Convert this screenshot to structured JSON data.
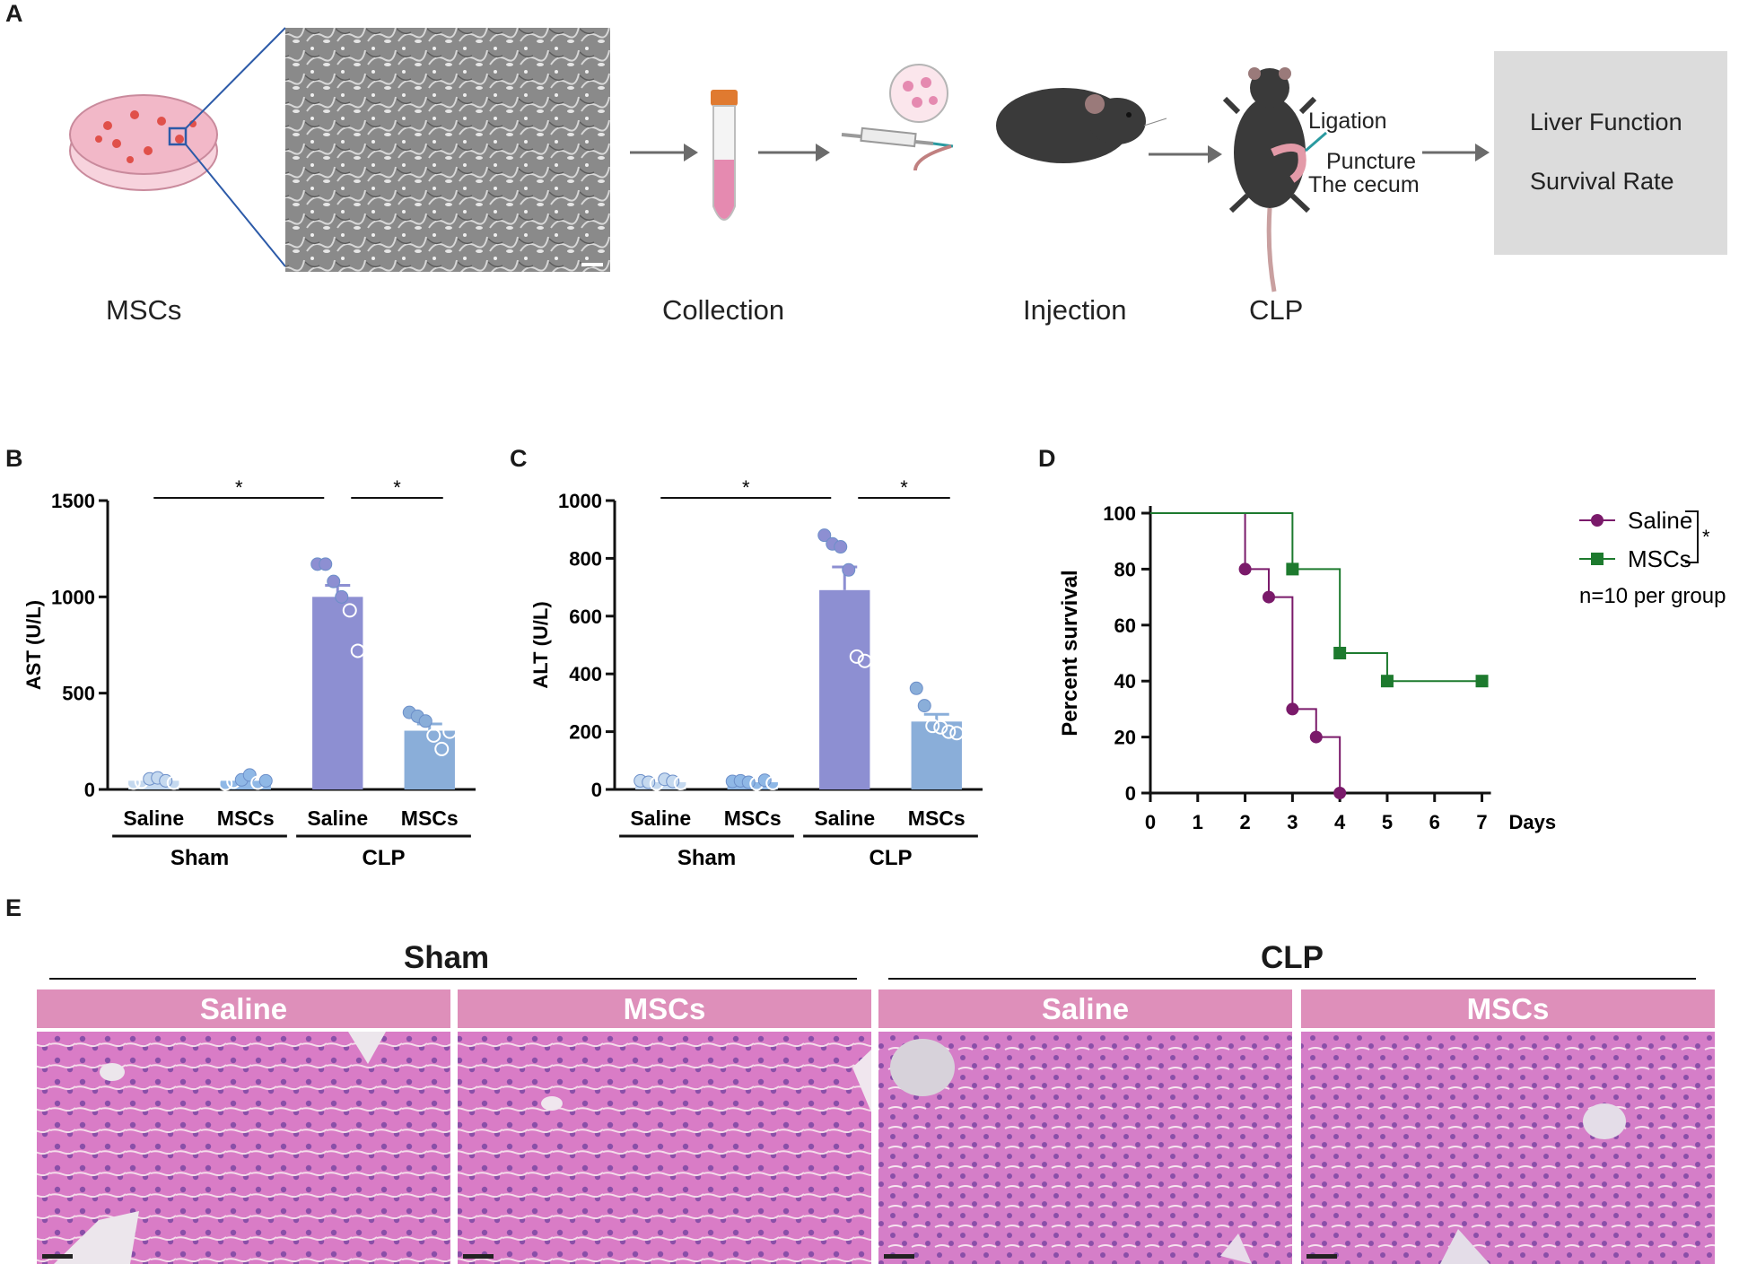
{
  "panels": {
    "a": "A",
    "b": "B",
    "c": "C",
    "d": "D",
    "e": "E"
  },
  "schematic": {
    "steps": [
      "MSCs",
      "Collection",
      "Injection",
      "CLP"
    ],
    "annotations": {
      "ligation": "Ligation",
      "puncture": "Puncture",
      "cecum": "The cecum"
    },
    "outcomes": [
      "Liver Function",
      "Survival Rate"
    ],
    "colors": {
      "dish": "#f2b8c8",
      "cells": "#e0504a",
      "zoom_lines": "#2c5aa8",
      "mouse": "#3a3a3a",
      "tube_cap": "#e07a30",
      "outcome_box": "#dcdcdc"
    }
  },
  "chart_data": [
    {
      "type": "bar",
      "panel": "B",
      "ylabel": "AST (U/L)",
      "ylim": [
        0,
        1500
      ],
      "yticks": [
        0,
        500,
        1000,
        1500
      ],
      "categories": [
        "Saline",
        "MSCs",
        "Saline",
        "MSCs"
      ],
      "groups": [
        {
          "name": "Sham",
          "span": [
            0,
            1
          ]
        },
        {
          "name": "CLP",
          "span": [
            2,
            3
          ]
        }
      ],
      "values": [
        45,
        45,
        1000,
        305
      ],
      "errors": [
        0,
        0,
        60,
        35
      ],
      "points": [
        [
          35,
          40,
          55,
          60,
          45,
          35
        ],
        [
          30,
          40,
          50,
          75,
          35,
          45
        ],
        [
          1170,
          1170,
          1080,
          1000,
          930,
          720
        ],
        [
          400,
          380,
          355,
          280,
          210,
          300
        ]
      ],
      "colors": [
        "#c5d9ef",
        "#8fb8e6",
        "#8d8fd2",
        "#8aaed9"
      ],
      "point_colors": [
        "#c5d9ef",
        "#8fb8e6",
        "#8d8fd2",
        "#8aaed9"
      ],
      "significance": [
        {
          "from": 0,
          "to": 2,
          "label": "*"
        },
        {
          "from": 2,
          "to": 3,
          "label": "*"
        }
      ]
    },
    {
      "type": "bar",
      "panel": "C",
      "ylabel": "ALT (U/L)",
      "ylim": [
        0,
        1000
      ],
      "yticks": [
        0,
        200,
        400,
        600,
        800,
        1000
      ],
      "categories": [
        "Saline",
        "MSCs",
        "Saline",
        "MSCs"
      ],
      "groups": [
        {
          "name": "Sham",
          "span": [
            0,
            1
          ]
        },
        {
          "name": "CLP",
          "span": [
            2,
            3
          ]
        }
      ],
      "values": [
        25,
        25,
        690,
        235
      ],
      "errors": [
        0,
        0,
        80,
        25
      ],
      "points": [
        [
          30,
          25,
          20,
          35,
          28,
          22
        ],
        [
          28,
          30,
          25,
          20,
          32,
          22
        ],
        [
          880,
          850,
          840,
          760,
          460,
          445
        ],
        [
          350,
          290,
          220,
          215,
          200,
          195
        ]
      ],
      "colors": [
        "#c5d9ef",
        "#8fb8e6",
        "#8d8fd2",
        "#8aaed9"
      ],
      "point_colors": [
        "#c5d9ef",
        "#8fb8e6",
        "#8d8fd2",
        "#8aaed9"
      ],
      "significance": [
        {
          "from": 0,
          "to": 2,
          "label": "*"
        },
        {
          "from": 2,
          "to": 3,
          "label": "*"
        }
      ]
    },
    {
      "type": "line",
      "panel": "D",
      "ylabel": "Percent survival",
      "xlabel": "Days",
      "ylim": [
        0,
        100
      ],
      "yticks": [
        0,
        20,
        40,
        60,
        80,
        100
      ],
      "xticks": [
        "0",
        "1",
        "2",
        "3",
        "4",
        "5",
        "6",
        "7"
      ],
      "x_tick_positions": [
        0,
        1,
        2,
        3,
        4,
        5,
        6,
        7
      ],
      "step": true,
      "series": [
        {
          "name": "Saline",
          "color": "#7a1a6a",
          "marker": "circle",
          "x": [
            0,
            2,
            2.5,
            3,
            3.5,
            4
          ],
          "y": [
            100,
            80,
            70,
            30,
            20,
            0
          ]
        },
        {
          "name": "MSCs",
          "color": "#1d7a2e",
          "marker": "square",
          "x": [
            0,
            3,
            4,
            5,
            7
          ],
          "y": [
            100,
            80,
            50,
            40,
            40
          ]
        }
      ],
      "legend_position": "top-right",
      "significance": "*",
      "note": "n=10 per group"
    }
  ],
  "histology": {
    "groups": [
      "Sham",
      "CLP"
    ],
    "headers": [
      "Saline",
      "MSCs",
      "Saline",
      "MSCs"
    ],
    "colors": {
      "header": "#de8fba",
      "tissue": "#d97cc6",
      "vessel": "#ece6ec"
    }
  }
}
